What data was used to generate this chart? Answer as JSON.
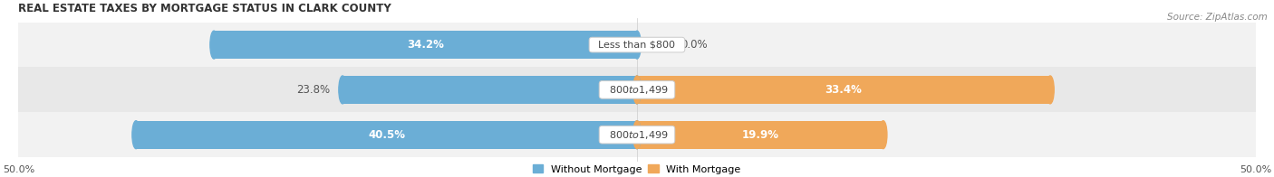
{
  "title": "REAL ESTATE TAXES BY MORTGAGE STATUS IN CLARK COUNTY",
  "source": "Source: ZipAtlas.com",
  "rows": [
    {
      "label": "Less than $800",
      "without_mortgage": 34.2,
      "with_mortgage": 0.0,
      "wom_label_inside": true,
      "wm_label_inside": false
    },
    {
      "label": "$800 to $1,499",
      "without_mortgage": 23.8,
      "with_mortgage": 33.4,
      "wom_label_inside": false,
      "wm_label_inside": true
    },
    {
      "label": "$800 to $1,499",
      "without_mortgage": 40.5,
      "with_mortgage": 19.9,
      "wom_label_inside": true,
      "wm_label_inside": true
    }
  ],
  "x_max": 50.0,
  "x_min": -50.0,
  "color_without": "#6baed6",
  "color_with": "#f0a85a",
  "color_bg_rows": [
    "#f2f2f2",
    "#e8e8e8",
    "#f2f2f2"
  ],
  "bar_height": 0.62,
  "label_fontsize": 8.5,
  "title_fontsize": 8.5,
  "source_fontsize": 7.5,
  "legend_fontsize": 8,
  "tick_fontsize": 8
}
